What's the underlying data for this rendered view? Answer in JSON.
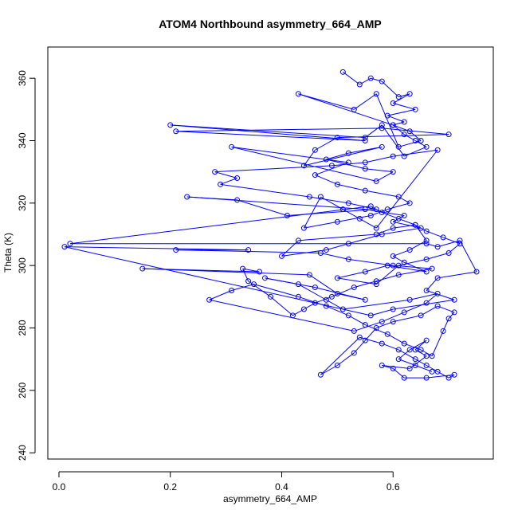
{
  "chart_data": {
    "type": "line",
    "markers": "open-circle",
    "title": "ATOM4 Northbound asymmetry_664_AMP",
    "xlabel": "asymmetry_664_AMP",
    "ylabel": "Theta (K)",
    "xlim": [
      -0.02,
      0.78
    ],
    "ylim": [
      238,
      370
    ],
    "xticks": [
      0.0,
      0.2,
      0.4,
      0.6
    ],
    "xtick_labels": [
      "0.0",
      "0.2",
      "0.4",
      "0.6"
    ],
    "yticks": [
      240,
      260,
      280,
      300,
      320,
      340,
      360
    ],
    "ytick_labels": [
      "240",
      "260",
      "280",
      "300",
      "320",
      "340",
      "360"
    ],
    "series": [
      {
        "name": "ATOM4 Northbound",
        "color": "#0000ff",
        "x": [
          0.51,
          0.54,
          0.56,
          0.58,
          0.61,
          0.63,
          0.6,
          0.64,
          0.59,
          0.62,
          0.6,
          0.63,
          0.65,
          0.61,
          0.57,
          0.53,
          0.43,
          0.6,
          0.62,
          0.64,
          0.66,
          0.62,
          0.58,
          0.55,
          0.2,
          0.55,
          0.21,
          0.58,
          0.7,
          0.5,
          0.46,
          0.44,
          0.58,
          0.52,
          0.48,
          0.55,
          0.6,
          0.57,
          0.31,
          0.52,
          0.46,
          0.5,
          0.55,
          0.61,
          0.63,
          0.59,
          0.56,
          0.5,
          0.44,
          0.47,
          0.51,
          0.54,
          0.57,
          0.68,
          0.6,
          0.55,
          0.49,
          0.28,
          0.32,
          0.29,
          0.45,
          0.52,
          0.57,
          0.41,
          0.32,
          0.23,
          0.55,
          0.62,
          0.6,
          0.65,
          0.58,
          0.52,
          0.48,
          0.4,
          0.43,
          0.57,
          0.6,
          0.64,
          0.66,
          0.63,
          0.6,
          0.62,
          0.66,
          0.59,
          0.55,
          0.5,
          0.57,
          0.61,
          0.66,
          0.7,
          0.72,
          0.69,
          0.66,
          0.64,
          0.61,
          0.58,
          0.56,
          0.02,
          0.66,
          0.68,
          0.72,
          0.75,
          0.68,
          0.66,
          0.71,
          0.6,
          0.56,
          0.01,
          0.34,
          0.21,
          0.47,
          0.52,
          0.6,
          0.67,
          0.61,
          0.57,
          0.53,
          0.49,
          0.46,
          0.44,
          0.42,
          0.38,
          0.34,
          0.33,
          0.36,
          0.15,
          0.45,
          0.5,
          0.55,
          0.46,
          0.37,
          0.43,
          0.48,
          0.51,
          0.63,
          0.68,
          0.66,
          0.62,
          0.58,
          0.53,
          0.27,
          0.31,
          0.35,
          0.43,
          0.48,
          0.52,
          0.55,
          0.59,
          0.62,
          0.65,
          0.67,
          0.69,
          0.7,
          0.71,
          0.68,
          0.65,
          0.6,
          0.57,
          0.55,
          0.53,
          0.5,
          0.47,
          0.54,
          0.58,
          0.61,
          0.64,
          0.66,
          0.68,
          0.7,
          0.71,
          0.66,
          0.62,
          0.6,
          0.58,
          0.63,
          0.66,
          0.64,
          0.66,
          0.63,
          0.61,
          0.64,
          0.67
        ],
        "y": [
          362,
          358,
          360,
          359,
          354,
          355,
          352,
          350,
          348,
          346,
          345,
          343,
          340,
          338,
          355,
          350,
          355,
          345,
          342,
          340,
          338,
          335,
          345,
          341,
          345,
          340,
          343,
          344,
          342,
          341,
          337,
          332,
          338,
          336,
          334,
          331,
          330,
          327,
          338,
          333,
          329,
          326,
          324,
          322,
          320,
          318,
          316,
          314,
          312,
          322,
          318,
          315,
          312,
          337,
          335,
          333,
          332,
          330,
          328,
          326,
          322,
          320,
          318,
          316,
          321,
          322,
          318,
          316,
          314,
          312,
          310,
          307,
          305,
          303,
          308,
          310,
          312,
          313,
          308,
          305,
          303,
          301,
          298,
          300,
          298,
          296,
          294,
          300,
          302,
          304,
          307,
          309,
          311,
          313,
          315,
          317,
          319,
          307,
          307,
          306,
          308,
          298,
          296,
          292,
          289,
          286,
          284,
          306,
          305,
          305,
          304,
          302,
          300,
          299,
          297,
          295,
          293,
          290,
          288,
          286,
          284,
          290,
          295,
          299,
          298,
          299,
          297,
          291,
          289,
          293,
          296,
          294,
          289,
          286,
          289,
          291,
          288,
          285,
          282,
          279,
          289,
          292,
          294,
          290,
          287,
          284,
          281,
          278,
          275,
          273,
          271,
          279,
          283,
          285,
          287,
          284,
          282,
          280,
          276,
          272,
          268,
          265,
          277,
          275,
          273,
          270,
          268,
          266,
          264,
          265,
          264,
          264,
          267,
          268,
          267,
          271,
          273,
          276,
          273,
          270,
          268,
          266
        ]
      }
    ]
  }
}
